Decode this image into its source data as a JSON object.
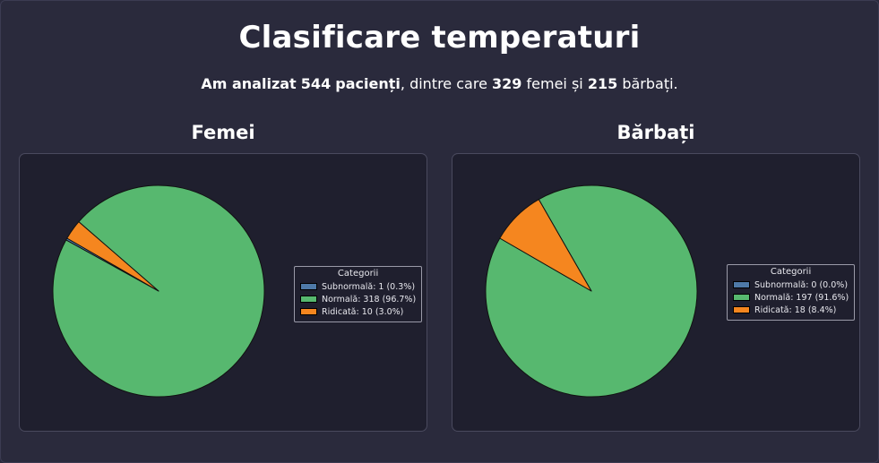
{
  "page": {
    "title": "Clasificare temperaturi",
    "subtitle": {
      "analyzed_prefix": "Am analizat",
      "total": "544",
      "patients_word": "pacienți",
      "among": ", dintre care",
      "women_count": "329",
      "women_word": "femei și",
      "men_count": "215",
      "men_word": "bărbați."
    }
  },
  "colors": {
    "subnormal": "#4e79a7",
    "normal": "#57b86f",
    "ridicata": "#f5861f",
    "background": "#2a2a3c",
    "panel": "#1f1f2e"
  },
  "chart_data": [
    {
      "type": "pie",
      "title": "Femei",
      "legend_title": "Categorii",
      "legend_position": "right",
      "start_angle_deg": 150,
      "direction": "counterclockwise",
      "labels": [
        "Subnormală: 1 (0.3%)",
        "Normală: 318 (96.7%)",
        "Ridicată: 10 (3.0%)"
      ],
      "categories": [
        "Subnormală",
        "Normală",
        "Ridicată"
      ],
      "values": [
        1,
        318,
        10
      ],
      "percentages": [
        0.3,
        96.7,
        3.0
      ]
    },
    {
      "type": "pie",
      "title": "Bărbați",
      "legend_title": "Categorii",
      "legend_position": "right",
      "start_angle_deg": 150,
      "direction": "counterclockwise",
      "labels": [
        "Subnormală: 0 (0.0%)",
        "Normală: 197 (91.6%)",
        "Ridicată: 18 (8.4%)"
      ],
      "categories": [
        "Subnormală",
        "Normală",
        "Ridicată"
      ],
      "values": [
        0,
        197,
        18
      ],
      "percentages": [
        0.0,
        91.6,
        8.4
      ]
    }
  ]
}
